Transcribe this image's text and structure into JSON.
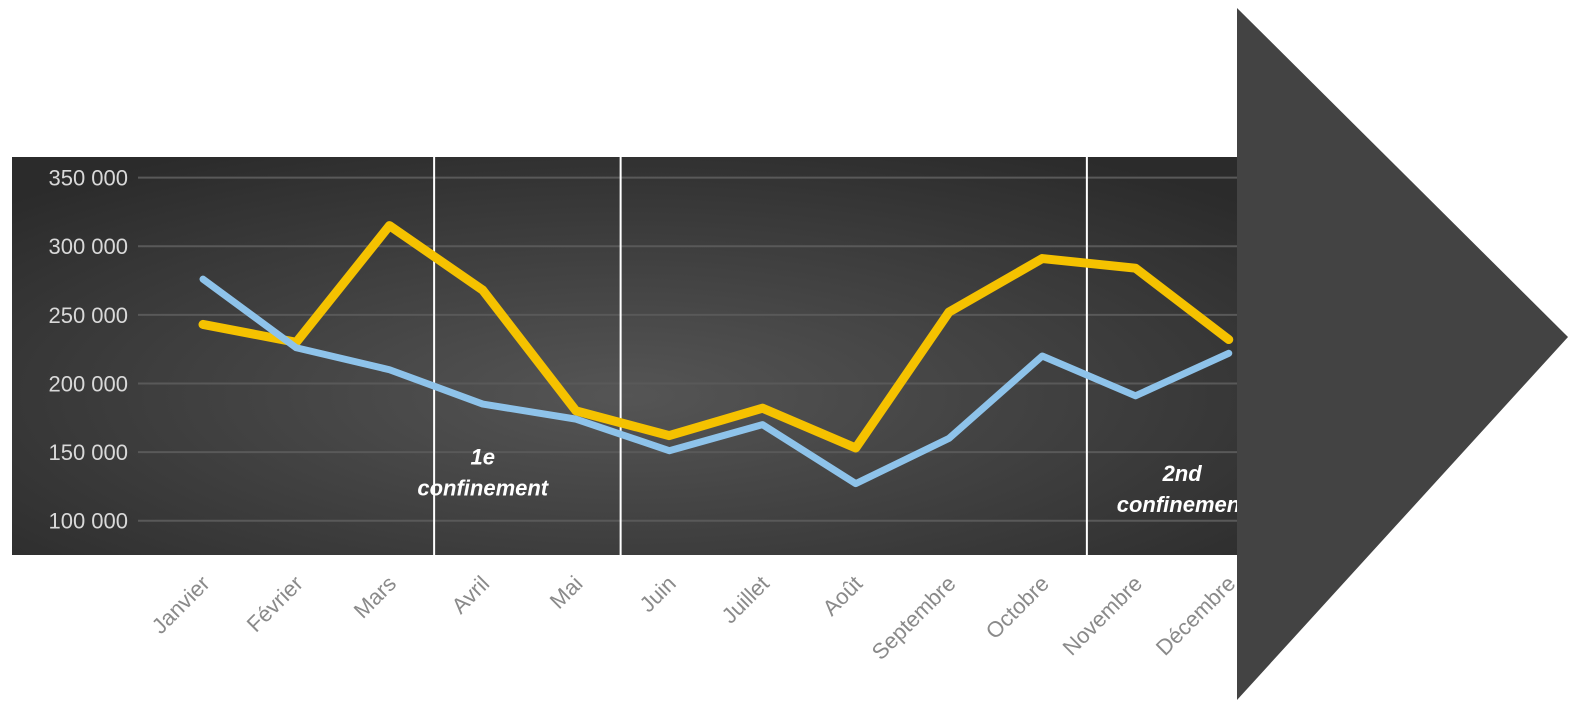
{
  "colors": {
    "plot_background": "#3a3a3a",
    "grid": "#595959",
    "arrow": "#434343",
    "divider": "#ffffff"
  },
  "chart_data": {
    "type": "line",
    "categories": [
      "Janvier",
      "Février",
      "Mars",
      "Avril",
      "Mai",
      "Juin",
      "Juillet",
      "Août",
      "Septembre",
      "Octobre",
      "Novembre",
      "Décembre"
    ],
    "series": [
      {
        "color": "#f5c200",
        "values": [
          243000,
          230000,
          315000,
          268000,
          180000,
          162000,
          182000,
          153000,
          252000,
          291000,
          284000,
          232000
        ]
      },
      {
        "color": "#8ec3ea",
        "values": [
          276000,
          226000,
          210000,
          185000,
          174000,
          151000,
          170000,
          127000,
          160000,
          220000,
          191000,
          222000
        ]
      }
    ],
    "y_ticks": [
      "350 000",
      "300 000",
      "250 000",
      "200 000",
      "150 000",
      "100 000"
    ],
    "y_tick_values": [
      350000,
      300000,
      250000,
      200000,
      150000,
      100000
    ],
    "ylim": [
      75000,
      365000
    ],
    "grid": true,
    "legend": "none",
    "period_dividers": [
      {
        "after_index": 2
      },
      {
        "after_index": 4
      },
      {
        "after_index": 9
      },
      {
        "after_index": 11
      }
    ],
    "annotations": [
      {
        "lines": [
          "1e",
          "confinement"
        ],
        "x_index": 3,
        "y_value": 141000
      },
      {
        "lines": [
          "2nd",
          "confinement"
        ],
        "x_index": 10.5,
        "y_value": 129000
      }
    ]
  }
}
